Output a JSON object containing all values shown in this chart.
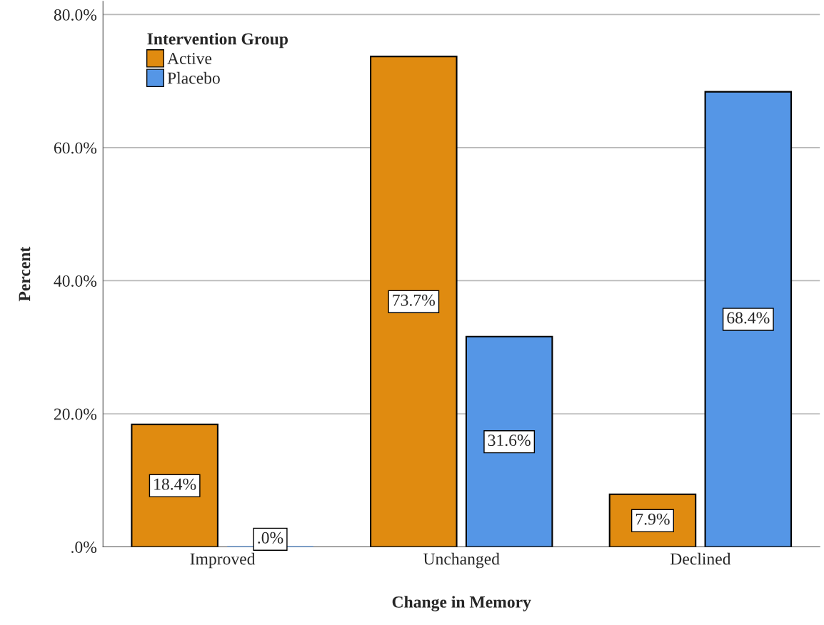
{
  "chart_data": {
    "type": "bar",
    "xlabel": "Change in Memory",
    "ylabel": "Percent",
    "legend_title": "Intervention Group",
    "categories": [
      "Improved",
      "Unchanged",
      "Declined"
    ],
    "series": [
      {
        "name": "Active",
        "color": "#e08b10",
        "values": [
          18.4,
          73.7,
          7.9
        ],
        "value_labels": [
          "18.4%",
          "73.7%",
          "7.9%"
        ]
      },
      {
        "name": "Placebo",
        "color": "#5596e6",
        "values": [
          0,
          31.6,
          68.4
        ],
        "value_labels": [
          ".0%",
          "31.6%",
          "68.4%"
        ]
      }
    ],
    "ylim": [
      0,
      82
    ],
    "yticks": [
      {
        "value": 0,
        "label": ".0%"
      },
      {
        "value": 20,
        "label": "20.0%"
      },
      {
        "value": 40,
        "label": "40.0%"
      },
      {
        "value": 60,
        "label": "60.0%"
      },
      {
        "value": 80,
        "label": "80.0%"
      }
    ],
    "grid": "y",
    "legend": "top left"
  }
}
